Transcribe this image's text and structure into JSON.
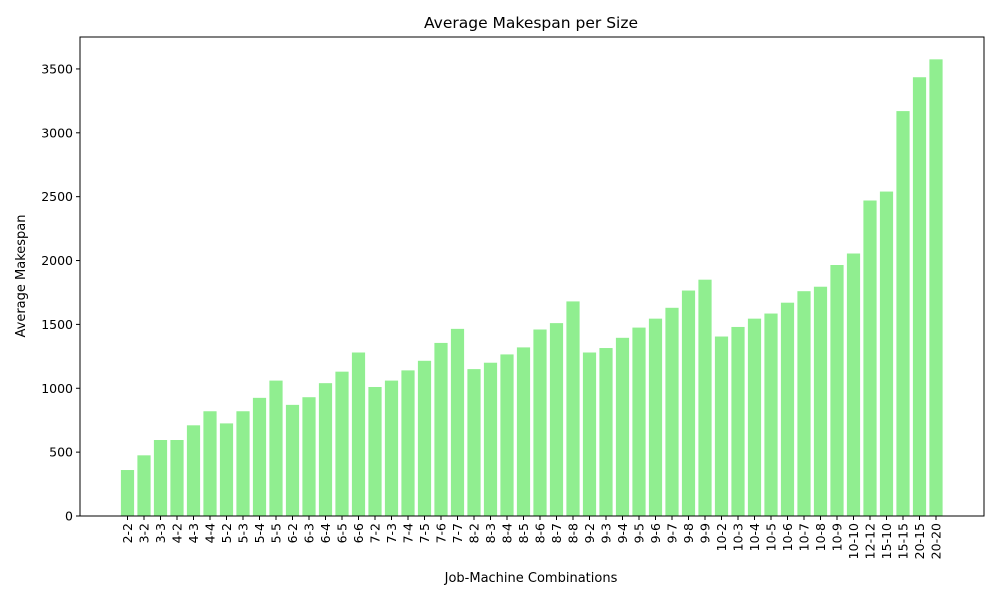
{
  "chart_data": {
    "type": "bar",
    "title": "Average Makespan per Size",
    "xlabel": "Job-Machine Combinations",
    "ylabel": "Average Makespan",
    "ylim": [
      0,
      3750
    ],
    "yticks": [
      0,
      500,
      1000,
      1500,
      2000,
      2500,
      3000,
      3500
    ],
    "grid": false,
    "bar_color": "#90ee90",
    "categories": [
      "2-2",
      "3-2",
      "3-3",
      "4-2",
      "4-3",
      "4-4",
      "5-2",
      "5-3",
      "5-4",
      "5-5",
      "6-2",
      "6-3",
      "6-4",
      "6-5",
      "6-6",
      "7-2",
      "7-3",
      "7-4",
      "7-5",
      "7-6",
      "7-7",
      "8-2",
      "8-3",
      "8-4",
      "8-5",
      "8-6",
      "8-7",
      "8-8",
      "9-2",
      "9-3",
      "9-4",
      "9-5",
      "9-6",
      "9-7",
      "9-8",
      "9-9",
      "10-2",
      "10-3",
      "10-4",
      "10-5",
      "10-6",
      "10-7",
      "10-8",
      "10-9",
      "10-10",
      "12-12",
      "15-10",
      "15-15",
      "20-15",
      "20-20"
    ],
    "values": [
      360,
      475,
      595,
      595,
      710,
      820,
      725,
      820,
      925,
      1060,
      870,
      930,
      1040,
      1130,
      1280,
      1010,
      1060,
      1140,
      1215,
      1355,
      1465,
      1150,
      1200,
      1265,
      1320,
      1460,
      1510,
      1680,
      1280,
      1315,
      1395,
      1475,
      1545,
      1630,
      1765,
      1850,
      1405,
      1480,
      1545,
      1585,
      1670,
      1760,
      1795,
      1965,
      2055,
      2470,
      2540,
      3170,
      3435,
      3575
    ]
  }
}
